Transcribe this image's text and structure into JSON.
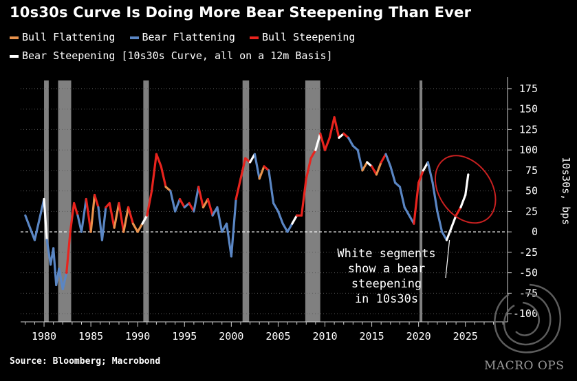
{
  "colors": {
    "background": "#000000",
    "bull_flattening": "#e8924c",
    "bear_flattening": "#5a86c4",
    "bull_steepening": "#e8231d",
    "bear_steepening": "#ffffff",
    "recession": "#808080",
    "highlight_ellipse": "#c82020"
  },
  "footer": {
    "source": "Source: Bloomberg; Macrobond"
  },
  "watermark": {
    "text": "MACRO OPS"
  },
  "chart_data": {
    "type": "line",
    "title": "10s30s Curve Is Doing More Bear Steepening Than Ever",
    "subtitle_legend": [
      {
        "name": "Bull Flattening",
        "color_key": "bull_flattening"
      },
      {
        "name": "Bear Flattening",
        "color_key": "bear_flattening"
      },
      {
        "name": "Bull Steepening",
        "color_key": "bull_steepening"
      },
      {
        "name": "Bear Steepening [10s30s Curve, all on a 12m Basis]",
        "color_key": "bear_steepening"
      }
    ],
    "ylabel": "10s30s, bps",
    "xlabel": "",
    "xlim": [
      1977.5,
      2029.5
    ],
    "ylim": [
      -110,
      185
    ],
    "xticks": [
      1980,
      1985,
      1990,
      1995,
      2000,
      2005,
      2010,
      2015,
      2020,
      2025
    ],
    "yticks": [
      175,
      150,
      125,
      100,
      75,
      50,
      25,
      0,
      -25,
      -50,
      -75,
      -100
    ],
    "zero_line": "dashed",
    "recessions": [
      [
        1980.0,
        1980.5
      ],
      [
        1981.5,
        1982.9
      ],
      [
        1990.6,
        1991.2
      ],
      [
        2001.2,
        2001.9
      ],
      [
        2007.9,
        2009.5
      ],
      [
        2020.1,
        2020.4
      ]
    ],
    "series": [
      {
        "name": "10s30s Curve",
        "x": [
          1978.0,
          1978.5,
          1979.0,
          1979.5,
          1980.0,
          1980.3,
          1980.7,
          1981.0,
          1981.3,
          1981.6,
          1982.0,
          1982.4,
          1982.8,
          1983.2,
          1983.6,
          1984.0,
          1984.5,
          1985.0,
          1985.4,
          1985.8,
          1986.2,
          1986.6,
          1987.0,
          1987.5,
          1988.0,
          1988.5,
          1989.0,
          1989.5,
          1990.0,
          1990.5,
          1991.0,
          1991.5,
          1992.0,
          1992.5,
          1993.0,
          1993.5,
          1994.0,
          1994.5,
          1995.0,
          1995.5,
          1996.0,
          1996.5,
          1997.0,
          1997.5,
          1998.0,
          1998.5,
          1999.0,
          1999.5,
          2000.0,
          2000.5,
          2001.0,
          2001.5,
          2002.0,
          2002.5,
          2003.0,
          2003.5,
          2004.0,
          2004.5,
          2005.0,
          2005.5,
          2006.0,
          2006.5,
          2007.0,
          2007.5,
          2008.0,
          2008.5,
          2009.0,
          2009.5,
          2010.0,
          2010.5,
          2011.0,
          2011.5,
          2012.0,
          2012.5,
          2013.0,
          2013.5,
          2014.0,
          2014.5,
          2015.0,
          2015.5,
          2016.0,
          2016.5,
          2017.0,
          2017.5,
          2018.0,
          2018.5,
          2019.0,
          2019.5,
          2020.0,
          2020.5,
          2021.0,
          2021.5,
          2022.0,
          2022.5,
          2023.0,
          2023.5,
          2024.0,
          2024.5,
          2025.0,
          2025.3
        ],
        "values": [
          20,
          5,
          -10,
          15,
          40,
          -10,
          -40,
          -20,
          -65,
          -45,
          -70,
          -50,
          0,
          35,
          20,
          0,
          40,
          0,
          45,
          30,
          -10,
          30,
          35,
          5,
          35,
          0,
          30,
          10,
          0,
          10,
          20,
          50,
          95,
          80,
          55,
          50,
          25,
          40,
          30,
          35,
          25,
          55,
          30,
          40,
          20,
          30,
          0,
          10,
          -30,
          40,
          65,
          90,
          85,
          95,
          65,
          80,
          75,
          35,
          25,
          10,
          0,
          10,
          20,
          20,
          65,
          90,
          100,
          120,
          100,
          115,
          140,
          115,
          120,
          115,
          105,
          100,
          75,
          85,
          80,
          70,
          85,
          95,
          80,
          60,
          55,
          30,
          20,
          10,
          60,
          75,
          85,
          60,
          25,
          0,
          -10,
          5,
          20,
          30,
          45,
          70
        ],
        "regimes": [
          "bear_flattening",
          "bear_flattening",
          "bear_flattening",
          "bear_flattening",
          "bear_steepening",
          "bear_flattening",
          "bear_flattening",
          "bear_flattening",
          "bear_flattening",
          "bear_flattening",
          "bear_flattening",
          "bull_steepening",
          "bull_steepening",
          "bull_steepening",
          "bear_flattening",
          "bear_flattening",
          "bull_steepening",
          "bull_flattening",
          "bull_steepening",
          "bear_flattening",
          "bear_flattening",
          "bull_steepening",
          "bull_steepening",
          "bull_flattening",
          "bull_steepening",
          "bull_flattening",
          "bull_steepening",
          "bull_flattening",
          "bull_flattening",
          "bear_steepening",
          "bull_steepening",
          "bull_steepening",
          "bull_steepening",
          "bull_steepening",
          "bull_flattening",
          "bear_flattening",
          "bear_flattening",
          "bull_steepening",
          "bear_flattening",
          "bull_steepening",
          "bear_flattening",
          "bull_steepening",
          "bull_flattening",
          "bull_steepening",
          "bear_flattening",
          "bear_flattening",
          "bear_flattening",
          "bear_flattening",
          "bear_flattening",
          "bull_steepening",
          "bull_steepening",
          "bull_steepening",
          "bear_steepening",
          "bear_flattening",
          "bull_flattening",
          "bull_steepening",
          "bear_flattening",
          "bear_flattening",
          "bear_flattening",
          "bear_flattening",
          "bear_flattening",
          "bear_steepening",
          "bull_steepening",
          "bull_steepening",
          "bull_steepening",
          "bull_steepening",
          "bear_steepening",
          "bull_steepening",
          "bull_steepening",
          "bull_steepening",
          "bull_steepening",
          "bear_steepening",
          "bull_steepening",
          "bear_flattening",
          "bear_flattening",
          "bear_flattening",
          "bull_flattening",
          "bear_steepening",
          "bull_steepening",
          "bull_flattening",
          "bull_steepening",
          "bear_flattening",
          "bear_flattening",
          "bear_flattening",
          "bear_flattening",
          "bear_flattening",
          "bear_flattening",
          "bull_steepening",
          "bull_steepening",
          "bear_steepening",
          "bear_flattening",
          "bear_flattening",
          "bear_flattening",
          "bear_flattening",
          "bear_steepening",
          "bear_steepening",
          "bull_steepening",
          "bear_steepening",
          "bear_steepening",
          "bear_steepening"
        ]
      }
    ],
    "annotation": {
      "text_lines": [
        "White segments",
        "show a bear",
        "steepening",
        "in 10s30s"
      ],
      "points_to": [
        2023.3,
        -10
      ]
    },
    "highlight": {
      "shape": "ellipse",
      "center": [
        2025.0,
        52
      ],
      "x_radius": 2.8,
      "y_radius": 45
    }
  }
}
